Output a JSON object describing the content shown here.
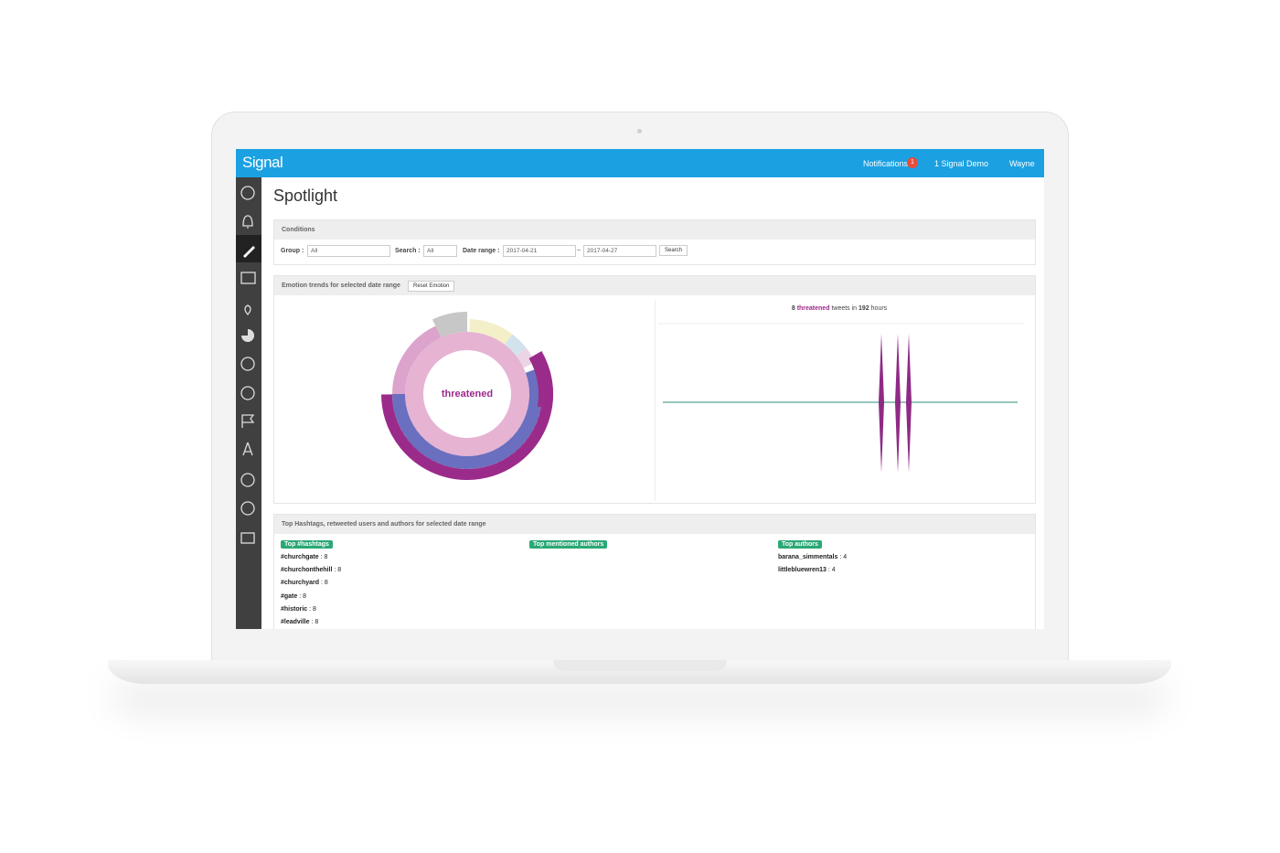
{
  "header": {
    "brand": "Signal",
    "notifications": "Notifications",
    "badge": "1",
    "account": "1 Signal Demo",
    "user": "Wayne"
  },
  "page": {
    "title": "Spotlight"
  },
  "conditions": {
    "title": "Conditions",
    "group_label": "Group :",
    "group_value": "All",
    "search_label": "Search :",
    "search_value": "All",
    "date_label": "Date range :",
    "date_from": "2017-04-21",
    "date_sep": "~",
    "date_to": "2017-04-27",
    "button": "Search"
  },
  "emotion": {
    "title": "Emotion trends for selected date range",
    "reset": "Reset Emotion",
    "center_label": "threatened",
    "summary": {
      "count": "8",
      "emotion": "threatened",
      "middle": "tweets in",
      "hours": "192",
      "unit": "hours"
    }
  },
  "top": {
    "title": "Top Hashtags, retweeted users and authors for selected date range",
    "columns": [
      {
        "heading": "Top #hashtags",
        "items": [
          {
            "name": "#churchgate",
            "count": 8
          },
          {
            "name": "#churchonthehill",
            "count": 8
          },
          {
            "name": "#churchyard",
            "count": 8
          },
          {
            "name": "#gate",
            "count": 8
          },
          {
            "name": "#historic",
            "count": 8
          },
          {
            "name": "#leadville",
            "count": 8
          }
        ]
      },
      {
        "heading": "Top mentioned authors",
        "items": []
      },
      {
        "heading": "Top authors",
        "items": [
          {
            "name": "barana_simmentals",
            "count": 4
          },
          {
            "name": "littlebluewren13",
            "count": 4
          }
        ]
      }
    ]
  }
}
